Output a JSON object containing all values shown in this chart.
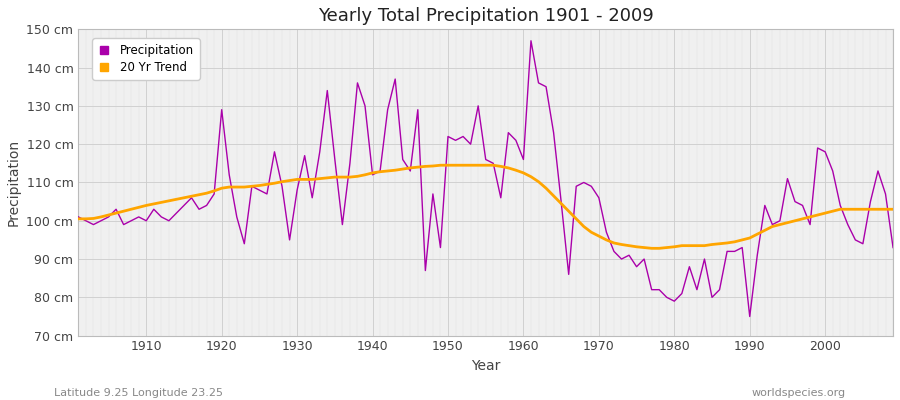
{
  "title": "Yearly Total Precipitation 1901 - 2009",
  "xlabel": "Year",
  "ylabel": "Precipitation",
  "subtitle_left": "Latitude 9.25 Longitude 23.25",
  "subtitle_right": "worldspecies.org",
  "ylim": [
    70,
    150
  ],
  "ytick_labels": [
    "70 cm",
    "80 cm",
    "90 cm",
    "100 cm",
    "110 cm",
    "120 cm",
    "130 cm",
    "140 cm",
    "150 cm"
  ],
  "ytick_values": [
    70,
    80,
    90,
    100,
    110,
    120,
    130,
    140,
    150
  ],
  "precipitation_color": "#aa00aa",
  "trend_color": "#FFA500",
  "background_color": "#ffffff",
  "plot_bg_color": "#f0f0f0",
  "years": [
    1901,
    1902,
    1903,
    1904,
    1905,
    1906,
    1907,
    1908,
    1909,
    1910,
    1911,
    1912,
    1913,
    1914,
    1915,
    1916,
    1917,
    1918,
    1919,
    1920,
    1921,
    1922,
    1923,
    1924,
    1925,
    1926,
    1927,
    1928,
    1929,
    1930,
    1931,
    1932,
    1933,
    1934,
    1935,
    1936,
    1937,
    1938,
    1939,
    1940,
    1941,
    1942,
    1943,
    1944,
    1945,
    1946,
    1947,
    1948,
    1949,
    1950,
    1951,
    1952,
    1953,
    1954,
    1955,
    1956,
    1957,
    1958,
    1959,
    1960,
    1961,
    1962,
    1963,
    1964,
    1965,
    1966,
    1967,
    1968,
    1969,
    1970,
    1971,
    1972,
    1973,
    1974,
    1975,
    1976,
    1977,
    1978,
    1979,
    1980,
    1981,
    1982,
    1983,
    1984,
    1985,
    1986,
    1987,
    1988,
    1989,
    1990,
    1991,
    1992,
    1993,
    1994,
    1995,
    1996,
    1997,
    1998,
    1999,
    2000,
    2001,
    2002,
    2003,
    2004,
    2005,
    2006,
    2007,
    2008,
    2009
  ],
  "precip": [
    101,
    100,
    99,
    100,
    101,
    103,
    99,
    100,
    101,
    100,
    103,
    101,
    100,
    102,
    104,
    106,
    103,
    104,
    107,
    129,
    112,
    101,
    94,
    109,
    108,
    107,
    118,
    109,
    95,
    108,
    117,
    106,
    118,
    134,
    116,
    99,
    115,
    136,
    130,
    112,
    113,
    129,
    137,
    116,
    113,
    129,
    87,
    107,
    93,
    122,
    121,
    122,
    120,
    130,
    116,
    115,
    106,
    123,
    121,
    116,
    147,
    136,
    135,
    123,
    105,
    86,
    109,
    110,
    109,
    106,
    97,
    92,
    90,
    91,
    88,
    90,
    82,
    82,
    80,
    79,
    81,
    88,
    82,
    90,
    80,
    82,
    92,
    92,
    93,
    75,
    91,
    104,
    99,
    100,
    111,
    105,
    104,
    99,
    119,
    118,
    113,
    104,
    99,
    95,
    94,
    105,
    113,
    107,
    93
  ],
  "trend": [
    100.5,
    100.5,
    100.6,
    101.0,
    101.5,
    102.0,
    102.5,
    103.0,
    103.5,
    104.0,
    104.4,
    104.8,
    105.2,
    105.6,
    106.0,
    106.4,
    106.8,
    107.2,
    107.8,
    108.5,
    108.8,
    108.8,
    108.8,
    109.0,
    109.2,
    109.5,
    109.8,
    110.2,
    110.5,
    110.8,
    110.8,
    110.8,
    111.0,
    111.2,
    111.4,
    111.4,
    111.4,
    111.6,
    112.0,
    112.5,
    112.8,
    113.0,
    113.2,
    113.5,
    113.8,
    114.0,
    114.2,
    114.3,
    114.5,
    114.5,
    114.5,
    114.5,
    114.5,
    114.5,
    114.5,
    114.5,
    114.2,
    113.8,
    113.2,
    112.5,
    111.5,
    110.2,
    108.5,
    106.5,
    104.5,
    102.5,
    100.5,
    98.5,
    97.0,
    96.0,
    95.0,
    94.2,
    93.8,
    93.5,
    93.2,
    93.0,
    92.8,
    92.8,
    93.0,
    93.2,
    93.5,
    93.5,
    93.5,
    93.5,
    93.8,
    94.0,
    94.2,
    94.5,
    95.0,
    95.5,
    96.5,
    97.5,
    98.5,
    99.0,
    99.5,
    100.0,
    100.5,
    101.0,
    101.5,
    102.0,
    102.5,
    103.0,
    103.0,
    103.0,
    103.0,
    103.0,
    103.0,
    103.0,
    103.0
  ]
}
